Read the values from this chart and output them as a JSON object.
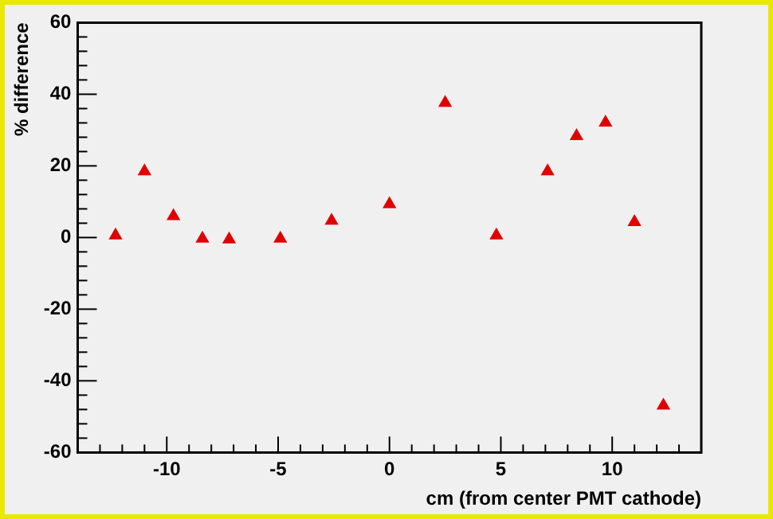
{
  "chart_data": {
    "type": "scatter",
    "xlabel": "cm (from center PMT cathode)",
    "ylabel": "% difference",
    "x": [
      -12.3,
      -11.0,
      -9.7,
      -8.4,
      -7.2,
      -4.9,
      -2.6,
      0.0,
      2.5,
      4.8,
      7.1,
      8.4,
      9.7,
      11.0,
      12.3
    ],
    "series": [
      {
        "color": "#e00000",
        "values": [
          0.6,
          18.5,
          6,
          -0.3,
          -0.5,
          -0.3,
          4.7,
          9.3,
          37.6,
          0.6,
          18.5,
          28.3,
          32.1,
          4.3,
          -46.9
        ]
      }
    ],
    "marker": "triangle",
    "grid": false,
    "legend": false,
    "xlim": [
      -14,
      14
    ],
    "xticks": [
      {
        "value": -14,
        "label": null
      },
      {
        "value": -13,
        "label": null
      },
      {
        "value": -12,
        "label": null
      },
      {
        "value": -11,
        "label": null
      },
      -10,
      {
        "value": -9,
        "label": null
      },
      {
        "value": -8,
        "label": null
      },
      {
        "value": -7,
        "label": null
      },
      {
        "value": -6,
        "label": null
      },
      -5,
      {
        "value": -4,
        "label": null
      },
      {
        "value": -3,
        "label": null
      },
      {
        "value": -2,
        "label": null
      },
      {
        "value": -1,
        "label": null
      },
      0,
      {
        "value": 1,
        "label": null
      },
      {
        "value": 2,
        "label": null
      },
      {
        "value": 3,
        "label": null
      },
      {
        "value": 4,
        "label": null
      },
      5,
      {
        "value": 6,
        "label": null
      },
      {
        "value": 7,
        "label": null
      },
      {
        "value": 8,
        "label": null
      },
      {
        "value": 9,
        "label": null
      },
      10,
      {
        "value": 11,
        "label": null
      },
      {
        "value": 12,
        "label": null
      },
      {
        "value": 13,
        "label": null
      },
      {
        "value": 14,
        "label": null
      }
    ],
    "ylim": [
      -60,
      60
    ],
    "yticks": [
      -60,
      {
        "value": -56,
        "label": null
      },
      {
        "value": -52,
        "label": null
      },
      {
        "value": -48,
        "label": null
      },
      {
        "value": -44,
        "label": null
      },
      -40,
      {
        "value": -36,
        "label": null
      },
      {
        "value": -32,
        "label": null
      },
      {
        "value": -28,
        "label": null
      },
      {
        "value": -24,
        "label": null
      },
      -20,
      {
        "value": -16,
        "label": null
      },
      {
        "value": -12,
        "label": null
      },
      {
        "value": -8,
        "label": null
      },
      {
        "value": -4,
        "label": null
      },
      0,
      {
        "value": 4,
        "label": null
      },
      {
        "value": 8,
        "label": null
      },
      {
        "value": 12,
        "label": null
      },
      {
        "value": 16,
        "label": null
      },
      20,
      {
        "value": 24,
        "label": null
      },
      {
        "value": 28,
        "label": null
      },
      {
        "value": 32,
        "label": null
      },
      {
        "value": 36,
        "label": null
      },
      40,
      {
        "value": 44,
        "label": null
      },
      {
        "value": 48,
        "label": null
      },
      {
        "value": 52,
        "label": null
      },
      {
        "value": 56,
        "label": null
      },
      60
    ]
  }
}
